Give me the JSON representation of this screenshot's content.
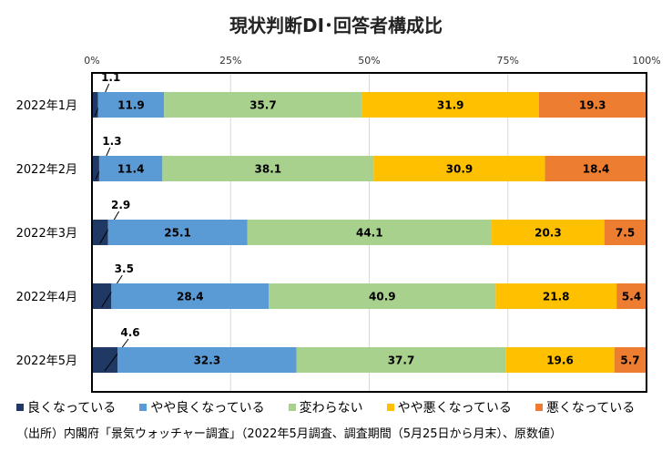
{
  "title": "現状判断DI･回答者構成比",
  "source": "（出所）内閣府「景気ウォッチャー調査」（2022年5月調査、調査期間（5月25日から月末）、原数値）",
  "chart_data": {
    "type": "bar",
    "stacked": true,
    "orientation": "horizontal",
    "title": "現状判断DI･回答者構成比",
    "xlim": [
      0,
      100
    ],
    "x_ticks": [
      "0%",
      "25%",
      "50%",
      "75%",
      "100%"
    ],
    "grid": true,
    "legend_position": "bottom",
    "categories": [
      "2022年1月",
      "2022年2月",
      "2022年3月",
      "2022年4月",
      "2022年5月"
    ],
    "series": [
      {
        "name": "良くなっている",
        "color": "#203864",
        "label_color": "#000000",
        "values": [
          1.1,
          1.3,
          2.9,
          3.5,
          4.6
        ],
        "labels": [
          "1.1",
          "1.3",
          "2.9",
          "3.5",
          "4.6"
        ]
      },
      {
        "name": "やや良くなっている",
        "color": "#5b9bd5",
        "label_color": "#000000",
        "values": [
          11.9,
          11.4,
          25.1,
          28.4,
          32.3
        ],
        "labels": [
          "11.9",
          "11.4",
          "25.1",
          "28.4",
          "32.3"
        ]
      },
      {
        "name": "変わらない",
        "color": "#a9d18e",
        "label_color": "#000000",
        "values": [
          35.7,
          38.1,
          44.1,
          40.9,
          37.7
        ],
        "labels": [
          "35.7",
          "38.1",
          "44.1",
          "40.9",
          "37.7"
        ]
      },
      {
        "name": "やや悪くなっている",
        "color": "#ffc000",
        "label_color": "#000000",
        "values": [
          31.9,
          30.9,
          20.3,
          21.8,
          19.6
        ],
        "labels": [
          "31.9",
          "30.9",
          "20.3",
          "21.8",
          "19.6"
        ]
      },
      {
        "name": "悪くなっている",
        "color": "#ed7d31",
        "label_color": "#000000",
        "values": [
          19.3,
          18.4,
          7.5,
          5.4,
          5.7
        ],
        "labels": [
          "19.3",
          "18.4",
          "7.5",
          "5.4",
          "5.7"
        ]
      }
    ]
  }
}
